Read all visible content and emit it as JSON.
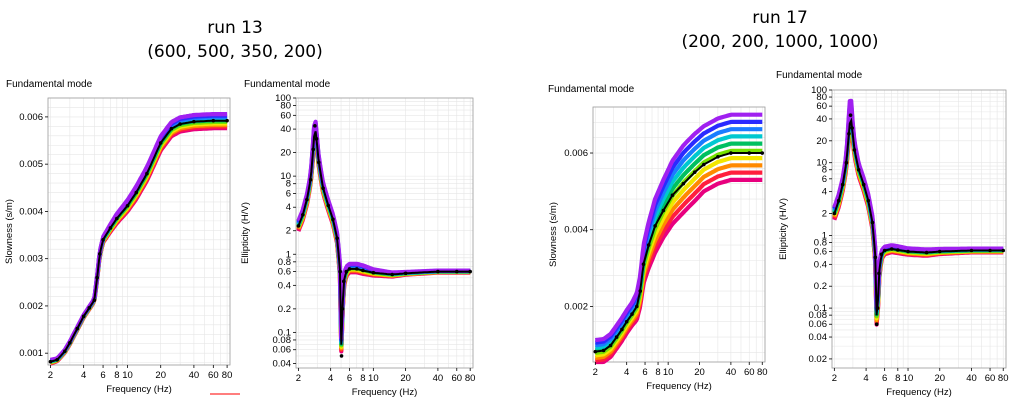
{
  "runs": [
    {
      "title": "run 13",
      "params": "(600, 500, 350, 200)"
    },
    {
      "title": "run 17",
      "params": "(200, 200, 1000, 1000)"
    }
  ],
  "colors": {
    "ensemble": [
      "#e8007e",
      "#ff1f3d",
      "#ff8a00",
      "#f2e600",
      "#76e000",
      "#00c060",
      "#00c8d0",
      "#1a7cff",
      "#2a2aff",
      "#a020f0"
    ],
    "best_fit": "#000000",
    "red_underline": "#ff3030"
  },
  "chart_data": [
    {
      "id": "run13-slowness",
      "type": "line",
      "title": "Fundamental mode",
      "xlabel": "Frequency (Hz)",
      "ylabel": "Slowness (s/m)",
      "xscale": "log",
      "xlim": [
        1.9,
        85
      ],
      "ylim": [
        0.00075,
        0.0064
      ],
      "xticks": [
        2,
        4,
        6,
        8,
        10,
        20,
        40,
        60,
        80
      ],
      "xticklabels": [
        "2",
        "4",
        "6",
        "8",
        "10",
        "20",
        "40",
        "60",
        "80"
      ],
      "yticks": [
        0.001,
        0.002,
        0.003,
        0.004,
        0.005,
        0.006
      ],
      "yticklabels": [
        "0.001",
        "0.002",
        "0.003",
        "0.004",
        "0.005",
        "0.006"
      ],
      "x": [
        2,
        2.3,
        2.7,
        3,
        3.5,
        4,
        4.5,
        5,
        5.3,
        5.6,
        6,
        7,
        8,
        10,
        12,
        15,
        20,
        25,
        30,
        40,
        60,
        80
      ],
      "best_fit": [
        0.00082,
        0.00086,
        0.00104,
        0.00122,
        0.00152,
        0.00178,
        0.00196,
        0.00212,
        0.0026,
        0.0031,
        0.0034,
        0.00365,
        0.00385,
        0.00412,
        0.0044,
        0.0048,
        0.00545,
        0.00575,
        0.00585,
        0.0059,
        0.00592,
        0.00592
      ],
      "spread_low": [
        -4e-05,
        -3e-05,
        -3e-05,
        -3e-05,
        -3e-05,
        -3e-05,
        -3e-05,
        -3e-05,
        -4e-05,
        -5e-05,
        -6e-05,
        -8e-05,
        -0.0001,
        -0.00012,
        -0.00014,
        -0.00015,
        -0.00016,
        -0.00016,
        -0.00016,
        -0.00016,
        -0.00016,
        -0.00016
      ],
      "spread_high": [
        4e-05,
        3e-05,
        3e-05,
        3e-05,
        3e-05,
        3e-05,
        3e-05,
        3e-05,
        4e-05,
        5e-05,
        6e-05,
        8e-05,
        0.0001,
        0.00012,
        0.00013,
        0.00014,
        0.00014,
        0.00014,
        0.00014,
        0.00014,
        0.00014,
        0.00014
      ]
    },
    {
      "id": "run13-ellipticity",
      "type": "line",
      "title": "Fundamental mode",
      "xlabel": "Frequency (Hz)",
      "ylabel": "Ellipticity (H/V)",
      "xscale": "log",
      "yscale": "log",
      "xlim": [
        1.9,
        85
      ],
      "ylim": [
        0.035,
        100
      ],
      "xticks": [
        2,
        4,
        6,
        8,
        10,
        20,
        40,
        60,
        80
      ],
      "xticklabels": [
        "2",
        "4",
        "6",
        "8",
        "10",
        "20",
        "40",
        "60",
        "80"
      ],
      "yticks": [
        0.04,
        0.06,
        0.08,
        0.1,
        0.2,
        0.4,
        0.6,
        0.8,
        1,
        2,
        4,
        6,
        8,
        10,
        20,
        40,
        60,
        80,
        100
      ],
      "yticklabels": [
        "0.04",
        "0.06",
        "0.08",
        "0.1",
        "0.2",
        "0.4",
        "0.6",
        "0.8",
        "1",
        "2",
        "4",
        "6",
        "8",
        "10",
        "20",
        "40",
        "60",
        "80",
        "100"
      ],
      "x": [
        2,
        2.2,
        2.4,
        2.6,
        2.75,
        2.85,
        2.95,
        3.1,
        3.4,
        3.8,
        4.2,
        4.6,
        4.9,
        5.05,
        5.15,
        5.3,
        5.6,
        6,
        7,
        8,
        10,
        15,
        20,
        40,
        60,
        80
      ],
      "best_fit": [
        2.3,
        3.2,
        5,
        9,
        22,
        44,
        30,
        15,
        7,
        4.2,
        2.8,
        1.6,
        0.6,
        0.05,
        0.2,
        0.45,
        0.6,
        0.65,
        0.65,
        0.62,
        0.58,
        0.55,
        0.57,
        0.6,
        0.6,
        0.6
      ],
      "spread_low": [
        -0.15,
        -0.15,
        -0.15,
        -0.15,
        -0.2,
        -0.15,
        -0.15,
        -0.15,
        -0.15,
        -0.15,
        -0.15,
        -0.15,
        -0.2,
        -0.2,
        -0.2,
        -0.2,
        -0.12,
        -0.1,
        -0.1,
        -0.1,
        -0.08,
        -0.06,
        -0.04,
        -0.03,
        -0.03,
        -0.03
      ],
      "spread_high": [
        0.15,
        0.15,
        0.15,
        0.15,
        0.25,
        0.35,
        0.2,
        0.15,
        0.15,
        0.15,
        0.15,
        0.15,
        0.2,
        0.2,
        0.2,
        0.2,
        0.15,
        0.15,
        0.15,
        0.15,
        0.1,
        0.06,
        0.04,
        0.03,
        0.03,
        0.03
      ]
    },
    {
      "id": "run17-slowness",
      "type": "line",
      "title": "Fundamental mode",
      "xlabel": "Frequency (Hz)",
      "ylabel": "Slowness (s/m)",
      "xscale": "log",
      "xlim": [
        1.9,
        85
      ],
      "ylim": [
        0.00055,
        0.0072
      ],
      "xticks": [
        2,
        4,
        6,
        8,
        10,
        20,
        40,
        60,
        80
      ],
      "xticklabels": [
        "2",
        "4",
        "6",
        "8",
        "10",
        "20",
        "40",
        "60",
        "80"
      ],
      "yticks": [
        0.002,
        0.004,
        0.006
      ],
      "yticklabels": [
        "0.002",
        "0.004",
        "0.006"
      ],
      "x": [
        2,
        2.4,
        2.8,
        3.2,
        3.6,
        4,
        4.5,
        5,
        5.4,
        5.8,
        6.5,
        7.5,
        9,
        11,
        14,
        18,
        22,
        30,
        40,
        60,
        80
      ],
      "best_fit": [
        0.00082,
        0.00085,
        0.00098,
        0.0012,
        0.0014,
        0.0016,
        0.0018,
        0.002,
        0.0024,
        0.0031,
        0.0036,
        0.0041,
        0.0045,
        0.0049,
        0.0052,
        0.0055,
        0.0057,
        0.0059,
        0.006,
        0.006,
        0.006
      ],
      "spread_low": [
        -0.0003,
        -0.0003,
        -0.0003,
        -0.0003,
        -0.0003,
        -0.0003,
        -0.0003,
        -0.00035,
        -0.0004,
        -0.0005,
        -0.0006,
        -0.0007,
        -0.0007,
        -0.00075,
        -0.00075,
        -0.00075,
        -0.0007,
        -0.0007,
        -0.0007,
        -0.0007,
        -0.0007
      ],
      "spread_high": [
        0.0003,
        0.0003,
        0.0003,
        0.0003,
        0.0003,
        0.0003,
        0.0003,
        0.00035,
        0.0004,
        0.0005,
        0.0006,
        0.0007,
        0.0008,
        0.0009,
        0.001,
        0.001,
        0.001,
        0.001,
        0.001,
        0.001,
        0.001
      ]
    },
    {
      "id": "run17-ellipticity",
      "type": "line",
      "title": "Fundamental mode",
      "xlabel": "Frequency (Hz)",
      "ylabel": "Ellipticity (H/V)",
      "xscale": "log",
      "yscale": "log",
      "xlim": [
        1.9,
        85
      ],
      "ylim": [
        0.015,
        100
      ],
      "xticks": [
        2,
        4,
        6,
        8,
        10,
        20,
        40,
        60,
        80
      ],
      "xticklabels": [
        "2",
        "4",
        "6",
        "8",
        "10",
        "20",
        "40",
        "60",
        "80"
      ],
      "yticks": [
        0.02,
        0.04,
        0.06,
        0.08,
        0.1,
        0.2,
        0.4,
        0.6,
        0.8,
        1,
        2,
        4,
        6,
        8,
        10,
        20,
        40,
        60,
        80,
        100
      ],
      "yticklabels": [
        "0.02",
        "0.04",
        "0.06",
        "0.08",
        "0.1",
        "0.2",
        "0.4",
        "0.6",
        "0.8",
        "1",
        "2",
        "4",
        "6",
        "8",
        "10",
        "20",
        "40",
        "60",
        "80",
        "100"
      ],
      "x": [
        2,
        2.2,
        2.4,
        2.6,
        2.75,
        2.85,
        2.95,
        3.1,
        3.4,
        3.8,
        4.2,
        4.6,
        4.9,
        5.05,
        5.15,
        5.3,
        5.6,
        6,
        7,
        8,
        10,
        15,
        20,
        40,
        60,
        80
      ],
      "best_fit": [
        2,
        3,
        5,
        10,
        25,
        45,
        30,
        15,
        8,
        5,
        3,
        1.5,
        0.5,
        0.06,
        0.1,
        0.3,
        0.55,
        0.62,
        0.65,
        0.63,
        0.6,
        0.58,
        0.6,
        0.62,
        0.62,
        0.62
      ],
      "spread_low": [
        -0.2,
        -0.2,
        -0.2,
        -0.2,
        -0.2,
        -0.2,
        -0.2,
        -0.2,
        -0.2,
        -0.2,
        -0.2,
        -0.2,
        -0.25,
        -0.3,
        -0.3,
        -0.25,
        -0.15,
        -0.12,
        -0.1,
        -0.1,
        -0.1,
        -0.1,
        -0.08,
        -0.06,
        -0.06,
        -0.06
      ],
      "spread_high": [
        0.2,
        0.2,
        0.2,
        0.25,
        0.6,
        0.8,
        0.4,
        0.25,
        0.2,
        0.2,
        0.2,
        0.2,
        0.25,
        0.3,
        0.3,
        0.25,
        0.12,
        0.12,
        0.12,
        0.12,
        0.1,
        0.1,
        0.08,
        0.06,
        0.06,
        0.06
      ]
    }
  ]
}
